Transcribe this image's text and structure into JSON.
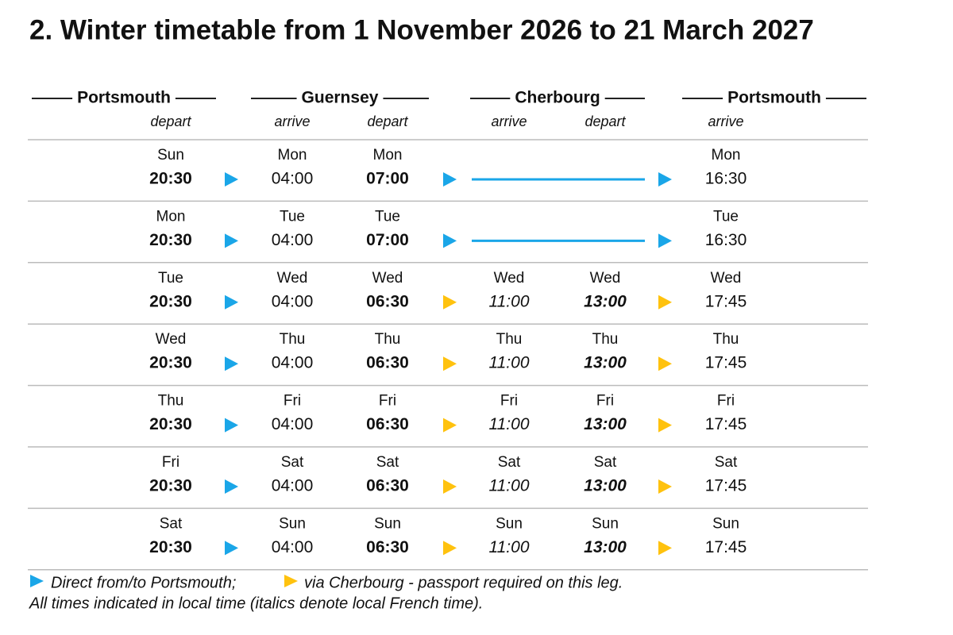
{
  "title": "2. Winter timetable from 1 November 2026 to 21 March 2027",
  "header": {
    "ports": [
      "Portsmouth",
      "Guernsey",
      "Cherbourg",
      "Portsmouth"
    ],
    "columns": [
      "depart",
      "arrive",
      "depart",
      "arrive",
      "depart",
      "arrive"
    ]
  },
  "rows": [
    [
      {
        "day": "Sun",
        "time": "20:30"
      },
      {
        "day": "Mon",
        "time": "04:00"
      },
      {
        "day": "Mon",
        "time": "07:00"
      },
      null,
      null,
      {
        "day": "Mon",
        "time": "16:30"
      }
    ],
    [
      {
        "day": "Mon",
        "time": "20:30"
      },
      {
        "day": "Tue",
        "time": "04:00"
      },
      {
        "day": "Tue",
        "time": "07:00"
      },
      null,
      null,
      {
        "day": "Tue",
        "time": "16:30"
      }
    ],
    [
      {
        "day": "Tue",
        "time": "20:30"
      },
      {
        "day": "Wed",
        "time": "04:00"
      },
      {
        "day": "Wed",
        "time": "06:30"
      },
      {
        "day": "Wed",
        "time": "11:00"
      },
      {
        "day": "Wed",
        "time": "13:00"
      },
      {
        "day": "Wed",
        "time": "17:45"
      }
    ],
    [
      {
        "day": "Wed",
        "time": "20:30"
      },
      {
        "day": "Thu",
        "time": "04:00"
      },
      {
        "day": "Thu",
        "time": "06:30"
      },
      {
        "day": "Thu",
        "time": "11:00"
      },
      {
        "day": "Thu",
        "time": "13:00"
      },
      {
        "day": "Thu",
        "time": "17:45"
      }
    ],
    [
      {
        "day": "Thu",
        "time": "20:30"
      },
      {
        "day": "Fri",
        "time": "04:00"
      },
      {
        "day": "Fri",
        "time": "06:30"
      },
      {
        "day": "Fri",
        "time": "11:00"
      },
      {
        "day": "Fri",
        "time": "13:00"
      },
      {
        "day": "Fri",
        "time": "17:45"
      }
    ],
    [
      {
        "day": "Fri",
        "time": "20:30"
      },
      {
        "day": "Sat",
        "time": "04:00"
      },
      {
        "day": "Sat",
        "time": "06:30"
      },
      {
        "day": "Sat",
        "time": "11:00"
      },
      {
        "day": "Sat",
        "time": "13:00"
      },
      {
        "day": "Sat",
        "time": "17:45"
      }
    ],
    [
      {
        "day": "Sat",
        "time": "20:30"
      },
      {
        "day": "Sun",
        "time": "04:00"
      },
      {
        "day": "Sun",
        "time": "06:30"
      },
      {
        "day": "Sun",
        "time": "11:00"
      },
      {
        "day": "Sun",
        "time": "13:00"
      },
      {
        "day": "Sun",
        "time": "17:45"
      }
    ]
  ],
  "footer": {
    "legend_direct": "Direct from/to Portsmouth;",
    "legend_via": "via Cherbourg - passport required on this leg.",
    "note": "All times indicated in local time (italics denote local French time)."
  }
}
